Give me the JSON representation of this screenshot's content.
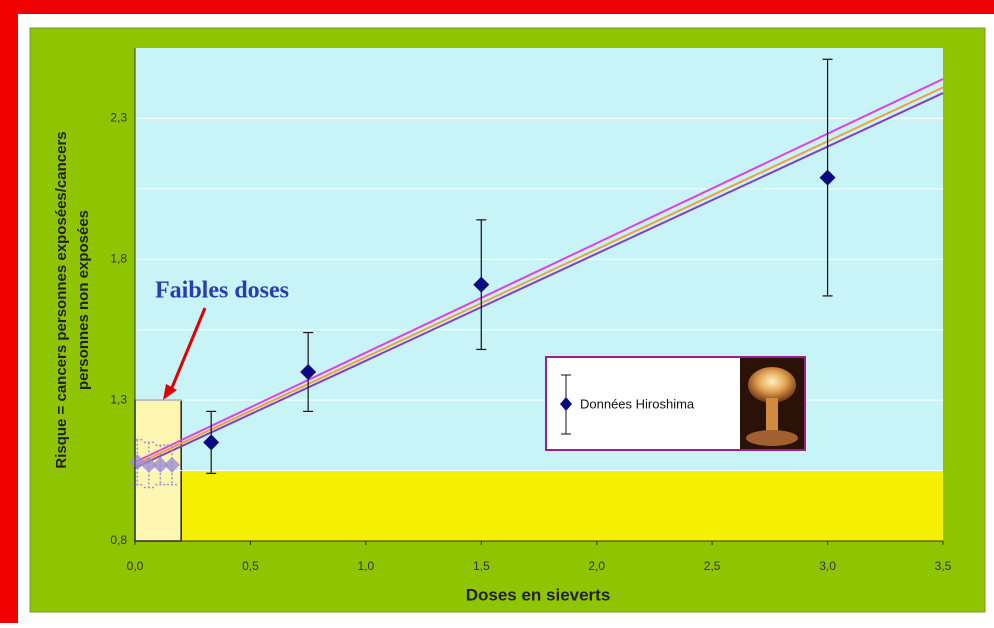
{
  "chart_data": {
    "type": "scatter",
    "xlabel": "Doses en sieverts",
    "ylabel_lines": [
      "Risque = cancers personnes exposées/cancers",
      "personnes non exposées"
    ],
    "annotation": "Faibles doses",
    "xlim": [
      0,
      3.5
    ],
    "ylim": [
      0.8,
      2.55
    ],
    "xticks": [
      {
        "value": 0,
        "label": "0,0"
      },
      {
        "value": 0.5,
        "label": "0,5"
      },
      {
        "value": 1,
        "label": "1,0"
      },
      {
        "value": 1.5,
        "label": "1,5"
      },
      {
        "value": 2,
        "label": "2,0"
      },
      {
        "value": 2.5,
        "label": "2,5"
      },
      {
        "value": 3,
        "label": "3,0"
      },
      {
        "value": 3.5,
        "label": "3,5"
      }
    ],
    "yticks": [
      {
        "value": 0.8,
        "label": "0,8"
      },
      {
        "value": 1.3,
        "label": "1,3"
      },
      {
        "value": 1.8,
        "label": "1,8"
      },
      {
        "value": 2.3,
        "label": "2,3"
      }
    ],
    "yminor": [
      1.05,
      1.55,
      2.05
    ],
    "grid": true,
    "series": [
      {
        "name": "Données Hiroshima",
        "color": "#0a0a80",
        "x": [
          0.33,
          0.75,
          1.5,
          3.0
        ],
        "values": [
          1.15,
          1.4,
          1.71,
          2.09
        ],
        "errors": [
          0.11,
          0.14,
          0.23,
          0.42
        ]
      }
    ],
    "low_dose_points": {
      "color": "#9b8fd6",
      "x": [
        0.01,
        0.06,
        0.11,
        0.16
      ],
      "values": [
        1.08,
        1.07,
        1.07,
        1.07
      ],
      "errors": [
        0.08,
        0.08,
        0.07,
        0.07
      ]
    },
    "fit_lines": [
      {
        "color": "#e040e0",
        "x": [
          0,
          3.5
        ],
        "values": [
          1.08,
          2.44
        ]
      },
      {
        "color": "#f0a040",
        "x": [
          0,
          3.5
        ],
        "values": [
          1.07,
          2.41
        ]
      },
      {
        "color": "#8040c0",
        "x": [
          0,
          3.5
        ],
        "values": [
          1.06,
          2.39
        ]
      }
    ],
    "band": {
      "ylim": [
        0.8,
        1.05
      ],
      "color": "#f5f000"
    },
    "low_dose_box": {
      "xlim": [
        0,
        0.2
      ],
      "ylim": [
        0.8,
        1.3
      ],
      "color": "#fdf6b0"
    }
  }
}
